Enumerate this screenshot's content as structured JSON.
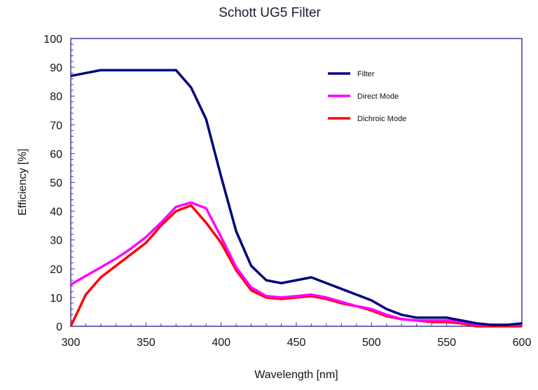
{
  "chart_data": {
    "type": "line",
    "title": "Schott UG5 Filter",
    "xlabel": "Wavelength [nm]",
    "ylabel": "Efficiency [%]",
    "xlim": [
      300,
      600
    ],
    "ylim": [
      0,
      100
    ],
    "xticks": [
      300,
      350,
      400,
      450,
      500,
      550,
      600
    ],
    "yticks": [
      0,
      10,
      20,
      30,
      40,
      50,
      60,
      70,
      80,
      90,
      100
    ],
    "grid": false,
    "legend_position": "top-right",
    "x": [
      300,
      310,
      320,
      330,
      340,
      350,
      360,
      370,
      380,
      390,
      400,
      410,
      420,
      430,
      440,
      450,
      460,
      470,
      480,
      490,
      500,
      510,
      520,
      530,
      540,
      550,
      560,
      570,
      580,
      590,
      600
    ],
    "series": [
      {
        "name": "Filter",
        "color": "#000080",
        "values": [
          87,
          88,
          89,
          89,
          89,
          89,
          89,
          89,
          83,
          72,
          52,
          33,
          21,
          16,
          15,
          16,
          17,
          15,
          13,
          11,
          9,
          6,
          4,
          3,
          3,
          3,
          2,
          1,
          0.5,
          0.5,
          1
        ]
      },
      {
        "name": "Direct Mode",
        "color": "#ff00ff",
        "values": [
          14.5,
          17.5,
          20.5,
          23.5,
          27,
          31,
          36,
          41.5,
          43,
          41,
          31,
          20.5,
          13.5,
          10.5,
          10,
          10.5,
          11,
          10,
          8.5,
          7,
          6,
          4,
          2.5,
          2,
          2,
          2,
          1.5,
          0.5,
          0.5,
          0.5,
          0.5
        ]
      },
      {
        "name": "Dichroic Mode",
        "color": "#ff0000",
        "values": [
          0,
          11,
          17,
          21,
          25,
          29,
          35,
          40,
          42,
          36,
          29,
          19.5,
          12.5,
          10,
          9.5,
          10,
          10.5,
          9.5,
          8,
          7,
          5.5,
          3.5,
          2.5,
          2,
          1.5,
          1.5,
          1,
          0,
          0,
          0,
          0
        ]
      }
    ]
  }
}
